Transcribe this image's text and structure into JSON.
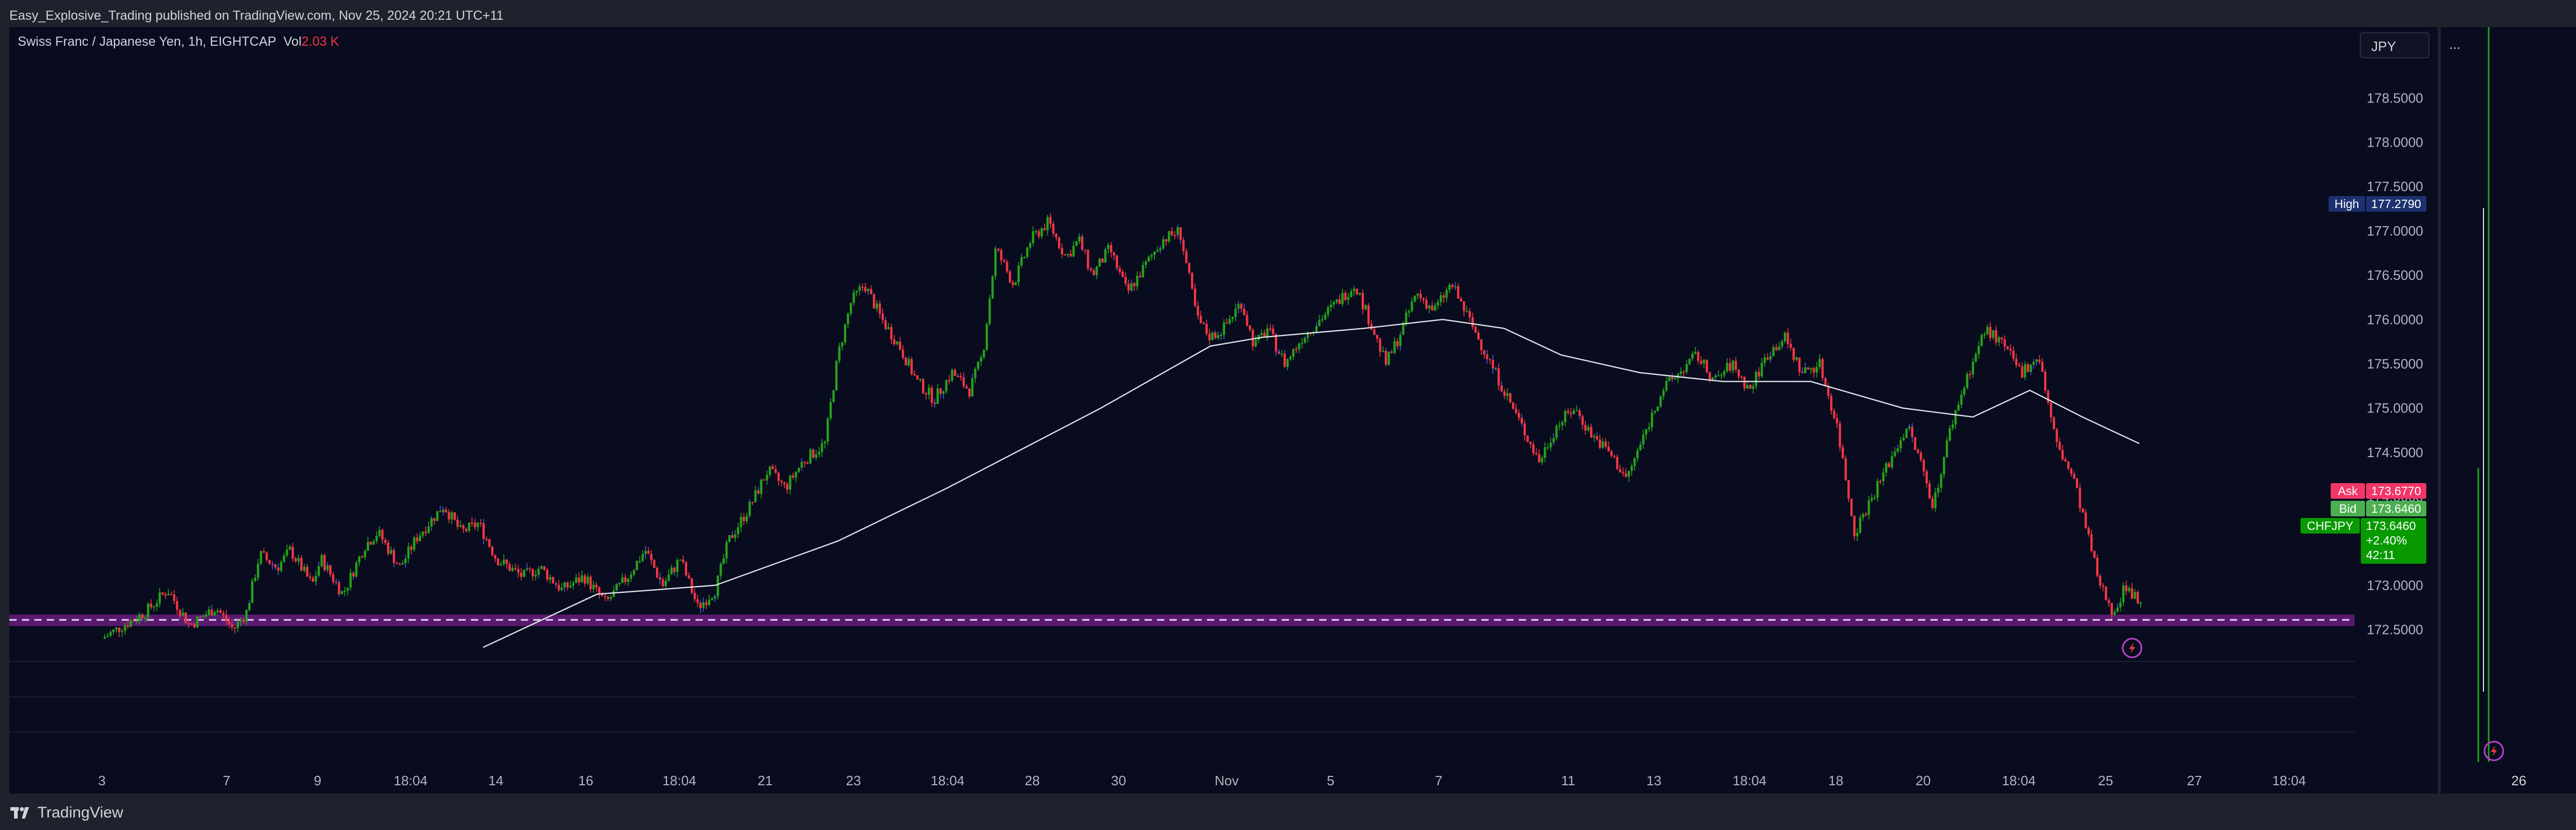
{
  "header": {
    "publisher_line": "Easy_Explosive_Trading published on TradingView.com, Nov 25, 2024 20:21 UTC+11"
  },
  "legend": {
    "symbol_text": "Swiss Franc / Japanese Yen, 1h, EIGHTCAP",
    "vol_label": "Vol",
    "vol_value": "2.03 K"
  },
  "currency_button": {
    "label": "JPY"
  },
  "side_menu": {
    "label": "..."
  },
  "footer": {
    "brand": "TradingView",
    "logo_icon": "tradingview-logo-icon"
  },
  "colors": {
    "background": "#080c1e",
    "frame": "#1e222d",
    "up": "#089981",
    "up_bright": "#26a21a",
    "down": "#f23645",
    "wick_blue": "#4f5bd5",
    "ma_line": "#e0e3eb",
    "zone": "#9c27b0",
    "high_tag": "#1c3170",
    "ask_tag": "#f23668",
    "bid_tag": "#4caf50",
    "last_tag": "#089a00"
  },
  "chart_data": {
    "type": "candlestick",
    "symbol": "CHFJPY",
    "interval": "1h",
    "ylim": [
      171.3,
      179.3
    ],
    "price_ticks": [
      "172.5000",
      "173.0000",
      "173.5000",
      "174.0000",
      "174.5000",
      "175.0000",
      "175.5000",
      "176.0000",
      "176.5000",
      "177.0000",
      "177.5000",
      "178.0000",
      "178.5000"
    ],
    "time_labels": [
      "3",
      "7",
      "9",
      "18:04",
      "14",
      "16",
      "18:04",
      "21",
      "23",
      "18:04",
      "28",
      "30",
      "Nov",
      "5",
      "7",
      "11",
      "13",
      "18:04",
      "18",
      "20",
      "18:04",
      "25",
      "27",
      "18:04"
    ],
    "side_time_label": "26",
    "price_path": [
      [
        0.0,
        172.4
      ],
      [
        1.0,
        172.7
      ],
      [
        1.5,
        172.95
      ],
      [
        2.0,
        172.55
      ],
      [
        2.6,
        172.75
      ],
      [
        3.0,
        172.5
      ],
      [
        3.3,
        172.7
      ],
      [
        3.6,
        173.35
      ],
      [
        4.0,
        173.2
      ],
      [
        4.3,
        173.4
      ],
      [
        4.8,
        173.0
      ],
      [
        5.0,
        173.3
      ],
      [
        5.5,
        172.9
      ],
      [
        6.0,
        173.45
      ],
      [
        6.3,
        173.6
      ],
      [
        6.8,
        173.2
      ],
      [
        7.2,
        173.55
      ],
      [
        7.8,
        173.9
      ],
      [
        8.2,
        173.6
      ],
      [
        8.6,
        173.7
      ],
      [
        9.0,
        173.3
      ],
      [
        9.6,
        173.1
      ],
      [
        10.0,
        173.2
      ],
      [
        10.5,
        172.95
      ],
      [
        11.0,
        173.1
      ],
      [
        11.5,
        172.8
      ],
      [
        12.0,
        173.1
      ],
      [
        12.4,
        173.4
      ],
      [
        12.8,
        173.0
      ],
      [
        13.2,
        173.3
      ],
      [
        13.6,
        172.75
      ],
      [
        14.0,
        172.95
      ],
      [
        14.3,
        173.5
      ],
      [
        14.8,
        173.9
      ],
      [
        15.2,
        174.3
      ],
      [
        15.6,
        174.1
      ],
      [
        16.0,
        174.4
      ],
      [
        16.5,
        174.6
      ],
      [
        16.8,
        175.6
      ],
      [
        17.1,
        176.2
      ],
      [
        17.4,
        176.4
      ],
      [
        17.8,
        176.0
      ],
      [
        18.2,
        175.7
      ],
      [
        18.6,
        175.3
      ],
      [
        19.0,
        175.1
      ],
      [
        19.4,
        175.4
      ],
      [
        19.8,
        175.2
      ],
      [
        20.1,
        175.6
      ],
      [
        20.4,
        176.8
      ],
      [
        20.8,
        176.4
      ],
      [
        21.2,
        176.9
      ],
      [
        21.6,
        177.1
      ],
      [
        22.0,
        176.7
      ],
      [
        22.3,
        176.9
      ],
      [
        22.6,
        176.5
      ],
      [
        23.0,
        176.8
      ],
      [
        23.4,
        176.3
      ],
      [
        23.8,
        176.6
      ],
      [
        24.2,
        176.9
      ],
      [
        24.6,
        177.0
      ],
      [
        25.0,
        176.0
      ],
      [
        25.3,
        175.8
      ],
      [
        25.6,
        175.9
      ],
      [
        26.0,
        176.2
      ],
      [
        26.3,
        175.7
      ],
      [
        26.6,
        175.9
      ],
      [
        27.0,
        175.5
      ],
      [
        27.4,
        175.8
      ],
      [
        27.8,
        176.0
      ],
      [
        28.2,
        176.2
      ],
      [
        28.6,
        176.4
      ],
      [
        29.0,
        175.9
      ],
      [
        29.3,
        175.5
      ],
      [
        29.6,
        175.8
      ],
      [
        30.0,
        176.3
      ],
      [
        30.4,
        176.1
      ],
      [
        30.8,
        176.4
      ],
      [
        31.2,
        176.0
      ],
      [
        31.6,
        175.6
      ],
      [
        32.0,
        175.2
      ],
      [
        32.4,
        174.8
      ],
      [
        32.8,
        174.4
      ],
      [
        33.2,
        174.8
      ],
      [
        33.6,
        175.0
      ],
      [
        34.0,
        174.7
      ],
      [
        34.4,
        174.5
      ],
      [
        34.8,
        174.2
      ],
      [
        35.2,
        174.7
      ],
      [
        35.6,
        175.2
      ],
      [
        36.0,
        175.4
      ],
      [
        36.4,
        175.6
      ],
      [
        36.8,
        175.3
      ],
      [
        37.2,
        175.5
      ],
      [
        37.6,
        175.2
      ],
      [
        38.0,
        175.6
      ],
      [
        38.4,
        175.8
      ],
      [
        38.8,
        175.4
      ],
      [
        39.2,
        175.5
      ],
      [
        39.6,
        174.8
      ],
      [
        40.0,
        173.6
      ],
      [
        40.4,
        174.0
      ],
      [
        40.8,
        174.4
      ],
      [
        41.2,
        174.8
      ],
      [
        41.5,
        174.4
      ],
      [
        41.8,
        173.9
      ],
      [
        42.2,
        174.8
      ],
      [
        42.6,
        175.4
      ],
      [
        43.0,
        175.9
      ],
      [
        43.4,
        175.7
      ],
      [
        43.8,
        175.4
      ],
      [
        44.2,
        175.6
      ],
      [
        44.6,
        174.6
      ],
      [
        45.0,
        174.2
      ],
      [
        45.3,
        173.6
      ],
      [
        45.6,
        173.0
      ],
      [
        45.9,
        172.7
      ],
      [
        46.2,
        173.0
      ],
      [
        46.5,
        172.8
      ],
      [
        46.8,
        173.2
      ],
      [
        47.0,
        173.5
      ]
    ],
    "moving_average": [
      [
        8.7,
        172.3
      ],
      [
        11.3,
        172.9
      ],
      [
        14.0,
        173.0
      ],
      [
        16.8,
        173.5
      ],
      [
        19.3,
        174.1
      ],
      [
        22.8,
        175.0
      ],
      [
        25.3,
        175.7
      ],
      [
        26.5,
        175.8
      ],
      [
        28.8,
        175.9
      ],
      [
        30.6,
        176.0
      ],
      [
        32.0,
        175.9
      ],
      [
        33.3,
        175.6
      ],
      [
        35.1,
        175.4
      ],
      [
        37.0,
        175.3
      ],
      [
        39.0,
        175.3
      ],
      [
        41.1,
        175.0
      ],
      [
        42.7,
        174.9
      ],
      [
        44.0,
        175.2
      ],
      [
        45.2,
        174.9
      ],
      [
        46.5,
        174.6
      ]
    ],
    "support_zone": [
      172.54,
      172.67
    ],
    "support_line": 172.61,
    "high": {
      "label": "High",
      "value": "177.2790"
    },
    "ask": {
      "label": "Ask",
      "value": "173.6770"
    },
    "bid": {
      "label": "Bid",
      "value": "173.6460"
    },
    "last": {
      "symbol": "CHFJPY",
      "value": "173.6460",
      "change": "+2.40%",
      "countdown": "42:11"
    }
  }
}
